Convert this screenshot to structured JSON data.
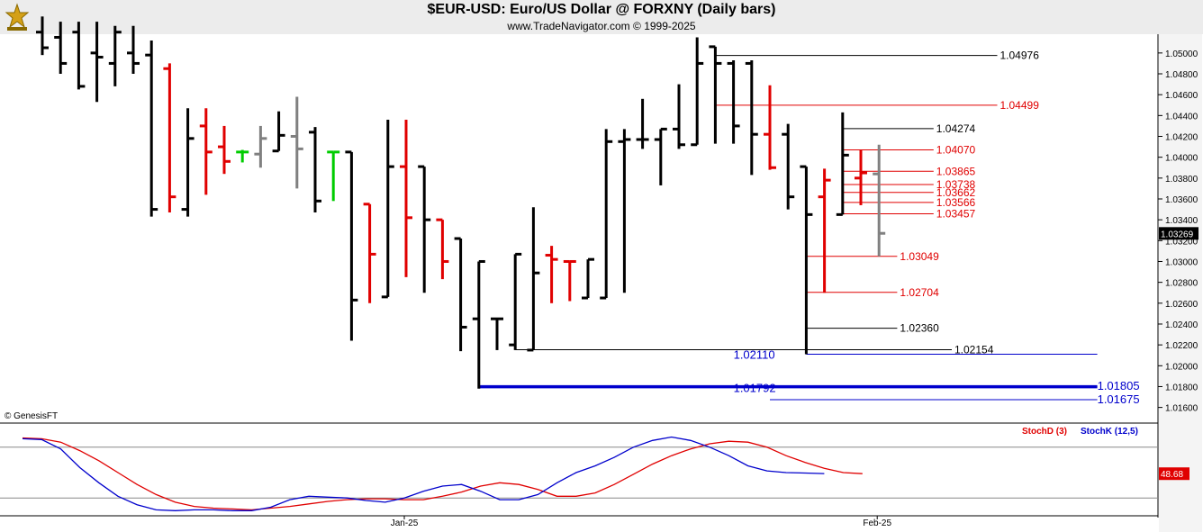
{
  "header": {
    "title": "$EUR-USD:  Euro/US Dollar @ FORXNY  (Daily bars)",
    "subtitle": "www.TradeNavigator.com © 1999-2025",
    "copyright": "© GenesisFT"
  },
  "colors": {
    "up_bar": "#000000",
    "down_bar": "#e00000",
    "neutral_bar": "#808080",
    "highlight_bar": "#00cc00",
    "stoch_d": "#e00000",
    "stoch_k": "#0000cc",
    "support_line": "#0000cc"
  },
  "chart_data": [
    {
      "type": "ohlc",
      "title": "$EUR-USD:  Euro/US Dollar @ FORXNY  (Daily bars)",
      "ylim": [
        1.0145,
        1.0518
      ],
      "yticks": [
        "1.01600",
        "1.01800",
        "1.02000",
        "1.02200",
        "1.02400",
        "1.02600",
        "1.02800",
        "1.03000",
        "1.03200",
        "1.03400",
        "1.03600",
        "1.03800",
        "1.04000",
        "1.04200",
        "1.04400",
        "1.04600",
        "1.04800",
        "1.05000"
      ],
      "last_price": "1.03269",
      "x_labels": [
        {
          "i": 20,
          "label": "Jan-25"
        },
        {
          "i": 46,
          "label": "Feb-25"
        }
      ],
      "bars": [
        {
          "o": 1.052,
          "h": 1.0535,
          "l": 1.0498,
          "c": 1.0505,
          "col": "black"
        },
        {
          "o": 1.0515,
          "h": 1.053,
          "l": 1.048,
          "c": 1.049,
          "col": "black"
        },
        {
          "o": 1.052,
          "h": 1.053,
          "l": 1.0465,
          "c": 1.0468,
          "col": "black"
        },
        {
          "o": 1.05,
          "h": 1.053,
          "l": 1.0453,
          "c": 1.0496,
          "col": "black"
        },
        {
          "o": 1.049,
          "h": 1.0526,
          "l": 1.0468,
          "c": 1.052,
          "col": "black"
        },
        {
          "o": 1.05,
          "h": 1.0526,
          "l": 1.048,
          "c": 1.049,
          "col": "black"
        },
        {
          "o": 1.0498,
          "h": 1.0512,
          "l": 1.0343,
          "c": 1.035,
          "col": "black"
        },
        {
          "o": 1.0485,
          "h": 1.049,
          "l": 1.0347,
          "c": 1.0362,
          "col": "red"
        },
        {
          "o": 1.035,
          "h": 1.0447,
          "l": 1.0343,
          "c": 1.0418,
          "col": "black"
        },
        {
          "o": 1.043,
          "h": 1.0447,
          "l": 1.0364,
          "c": 1.0405,
          "col": "red"
        },
        {
          "o": 1.041,
          "h": 1.043,
          "l": 1.0384,
          "c": 1.0396,
          "col": "red"
        },
        {
          "o": 1.0405,
          "h": 1.0407,
          "l": 1.0395,
          "c": 1.0405,
          "col": "green"
        },
        {
          "o": 1.0403,
          "h": 1.043,
          "l": 1.039,
          "c": 1.0418,
          "col": "gray"
        },
        {
          "o": 1.0406,
          "h": 1.0444,
          "l": 1.0406,
          "c": 1.0421,
          "col": "black"
        },
        {
          "o": 1.042,
          "h": 1.0458,
          "l": 1.037,
          "c": 1.0408,
          "col": "gray"
        },
        {
          "o": 1.0424,
          "h": 1.0429,
          "l": 1.0347,
          "c": 1.0358,
          "col": "black"
        },
        {
          "o": 1.0405,
          "h": 1.0405,
          "l": 1.0358,
          "c": 1.0405,
          "col": "green"
        },
        {
          "o": 1.0405,
          "h": 1.0405,
          "l": 1.0224,
          "c": 1.0263,
          "col": "black"
        },
        {
          "o": 1.0355,
          "h": 1.0355,
          "l": 1.026,
          "c": 1.0307,
          "col": "red"
        },
        {
          "o": 1.0266,
          "h": 1.0436,
          "l": 1.0266,
          "c": 1.0391,
          "col": "black"
        },
        {
          "o": 1.0391,
          "h": 1.0436,
          "l": 1.0285,
          "c": 1.0342,
          "col": "red"
        },
        {
          "o": 1.0391,
          "h": 1.0391,
          "l": 1.027,
          "c": 1.034,
          "col": "black"
        },
        {
          "o": 1.034,
          "h": 1.034,
          "l": 1.0283,
          "c": 1.03,
          "col": "red"
        },
        {
          "o": 1.0322,
          "h": 1.0322,
          "l": 1.0214,
          "c": 1.0237,
          "col": "black"
        },
        {
          "o": 1.0245,
          "h": 1.03,
          "l": 1.0178,
          "c": 1.03,
          "col": "black"
        },
        {
          "o": 1.0245,
          "h": 1.0245,
          "l": 1.0215,
          "c": 1.0245,
          "col": "black"
        },
        {
          "o": 1.022,
          "h": 1.0307,
          "l": 1.0215,
          "c": 1.0307,
          "col": "black"
        },
        {
          "o": 1.0215,
          "h": 1.0352,
          "l": 1.0215,
          "c": 1.0289,
          "col": "black"
        },
        {
          "o": 1.0306,
          "h": 1.0315,
          "l": 1.026,
          "c": 1.0302,
          "col": "red"
        },
        {
          "o": 1.03,
          "h": 1.03,
          "l": 1.0262,
          "c": 1.03,
          "col": "red"
        },
        {
          "o": 1.0265,
          "h": 1.0302,
          "l": 1.0265,
          "c": 1.0302,
          "col": "black"
        },
        {
          "o": 1.0265,
          "h": 1.0427,
          "l": 1.0265,
          "c": 1.0415,
          "col": "black"
        },
        {
          "o": 1.0415,
          "h": 1.0427,
          "l": 1.027,
          "c": 1.0417,
          "col": "black"
        },
        {
          "o": 1.0417,
          "h": 1.0456,
          "l": 1.0408,
          "c": 1.0417,
          "col": "black"
        },
        {
          "o": 1.0417,
          "h": 1.0427,
          "l": 1.0373,
          "c": 1.0427,
          "col": "black"
        },
        {
          "o": 1.0427,
          "h": 1.047,
          "l": 1.0408,
          "c": 1.0412,
          "col": "black"
        },
        {
          "o": 1.0412,
          "h": 1.0515,
          "l": 1.0412,
          "c": 1.049,
          "col": "black"
        },
        {
          "o": 1.0506,
          "h": 1.0506,
          "l": 1.0413,
          "c": 1.049,
          "col": "black"
        },
        {
          "o": 1.049,
          "h": 1.0493,
          "l": 1.0413,
          "c": 1.043,
          "col": "black"
        },
        {
          "o": 1.049,
          "h": 1.0493,
          "l": 1.0383,
          "c": 1.0422,
          "col": "black"
        },
        {
          "o": 1.0422,
          "h": 1.0469,
          "l": 1.0388,
          "c": 1.039,
          "col": "red"
        },
        {
          "o": 1.0422,
          "h": 1.0432,
          "l": 1.035,
          "c": 1.0362,
          "col": "black"
        },
        {
          "o": 1.0391,
          "h": 1.0391,
          "l": 1.0211,
          "c": 1.0345,
          "col": "black"
        },
        {
          "o": 1.0362,
          "h": 1.0389,
          "l": 1.027,
          "c": 1.0378,
          "col": "red"
        },
        {
          "o": 1.0345,
          "h": 1.0443,
          "l": 1.0345,
          "c": 1.0402,
          "col": "black"
        },
        {
          "o": 1.038,
          "h": 1.0407,
          "l": 1.0354,
          "c": 1.0385,
          "col": "red"
        },
        {
          "o": 1.0384,
          "h": 1.0412,
          "l": 1.0305,
          "c": 1.0327,
          "col": "gray"
        }
      ],
      "levels": [
        {
          "value": 1.04976,
          "label": "1.04976",
          "color": "black",
          "from": 37,
          "to": 52.5
        },
        {
          "value": 1.04499,
          "label": "1.04499",
          "color": "red",
          "from": 37,
          "to": 52.5
        },
        {
          "value": 1.04274,
          "label": "1.04274",
          "color": "black",
          "from": 44,
          "to": 49
        },
        {
          "value": 1.0407,
          "label": "1.04070",
          "color": "red",
          "from": 44,
          "to": 49
        },
        {
          "value": 1.03865,
          "label": "1.03865",
          "color": "red",
          "from": 44,
          "to": 49
        },
        {
          "value": 1.03738,
          "label": "1.03738",
          "color": "red",
          "from": 44,
          "to": 49
        },
        {
          "value": 1.03662,
          "label": "1.03662",
          "color": "red",
          "from": 44,
          "to": 49
        },
        {
          "value": 1.03566,
          "label": "1.03566",
          "color": "red",
          "from": 44,
          "to": 49
        },
        {
          "value": 1.03457,
          "label": "1.03457",
          "color": "red",
          "from": 44,
          "to": 49
        },
        {
          "value": 1.03049,
          "label": "1.03049",
          "color": "red",
          "from": 42,
          "to": 47
        },
        {
          "value": 1.02704,
          "label": "1.02704",
          "color": "red",
          "from": 42,
          "to": 47
        },
        {
          "value": 1.0236,
          "label": "1.02360",
          "color": "black",
          "from": 42,
          "to": 47
        },
        {
          "value": 1.02154,
          "label": "1.02154",
          "color": "black",
          "from": 26,
          "to": 50
        },
        {
          "value": 1.0211,
          "label": "1.02110",
          "color": "blue",
          "from": 42,
          "to": 58,
          "label_at": 38
        },
        {
          "value": 1.01805,
          "label": "1.01805",
          "color": "blue",
          "from": 24,
          "to": 58,
          "label_at": 58
        },
        {
          "value": 1.01792,
          "label": "1.01792",
          "color": "blue",
          "from": 24,
          "to": 58,
          "label_at": 38
        },
        {
          "value": 1.01675,
          "label": "1.01675",
          "color": "blue",
          "from": 40,
          "to": 58,
          "label_at": 58
        }
      ]
    },
    {
      "type": "line",
      "title": "",
      "ylim": [
        0,
        100
      ],
      "last_value": "48.68",
      "series": [
        {
          "name": "StochD (3)",
          "color": "red",
          "values": [
            91,
            90,
            86,
            76,
            64,
            50,
            36,
            24,
            15,
            10,
            8,
            7,
            6,
            8,
            10,
            13,
            16,
            18,
            19,
            19,
            18,
            18,
            22,
            27,
            34,
            38,
            36,
            30,
            22,
            22,
            26,
            36,
            48,
            60,
            70,
            78,
            84,
            87,
            86,
            80,
            70,
            62,
            55,
            50,
            48.7
          ]
        },
        {
          "name": "StochK (12,5)",
          "color": "blue",
          "values": [
            90,
            89,
            78,
            56,
            38,
            22,
            12,
            6,
            5,
            6,
            6,
            5,
            5,
            9,
            18,
            22,
            21,
            20,
            17,
            15,
            20,
            28,
            34,
            36,
            28,
            18,
            18,
            24,
            38,
            50,
            58,
            68,
            80,
            88,
            92,
            88,
            80,
            70,
            58,
            52,
            50,
            49.5,
            48.8
          ]
        }
      ]
    }
  ]
}
